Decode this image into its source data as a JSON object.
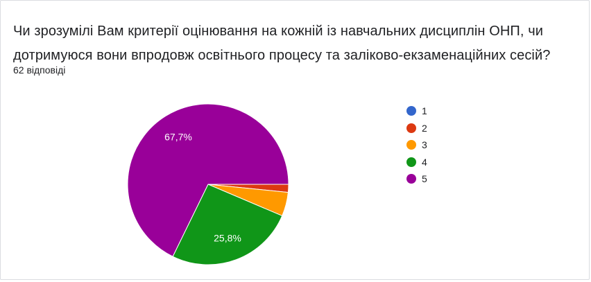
{
  "question": {
    "title": "Чи зрозумілі Вам критерії оцінювання на кожній із навчальних дисциплін ОНП, чи дотримуюся вони впродовж освітнього процесу та заліково-екзаменаційних сесій?",
    "responses": "62 відповіді"
  },
  "chart_data": {
    "type": "pie",
    "categories": [
      "1",
      "2",
      "3",
      "4",
      "5"
    ],
    "values": [
      0,
      1.6,
      4.8,
      25.8,
      67.7
    ],
    "colors": [
      "#3366cc",
      "#dc3912",
      "#ff9900",
      "#109618",
      "#990099"
    ],
    "data_labels": [
      "",
      "",
      "",
      "25,8%",
      "67,7%"
    ],
    "legend_position": "right"
  }
}
